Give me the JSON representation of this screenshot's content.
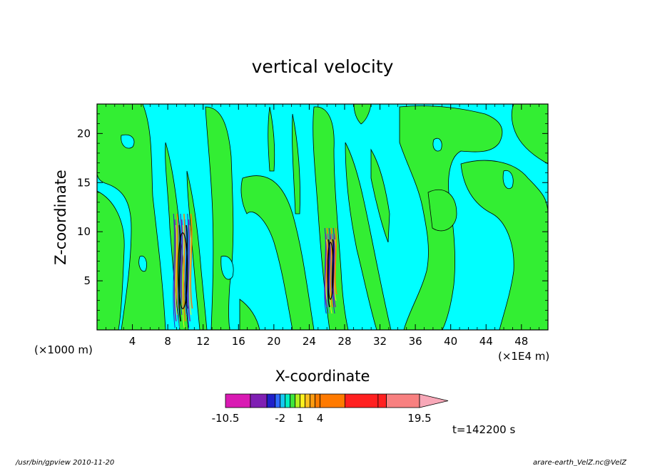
{
  "chart_data": {
    "type": "contour",
    "title": "vertical velocity",
    "xlabel": "X-coordinate",
    "ylabel": "Z-coordinate",
    "x_units_left": "(×1000 m)",
    "x_units_right": "(×1E4 m)",
    "xlim": [
      0,
      51
    ],
    "ylim": [
      0,
      23
    ],
    "x_ticks": [
      "4",
      "8",
      "12",
      "16",
      "20",
      "24",
      "28",
      "32",
      "36",
      "40",
      "44",
      "48"
    ],
    "x_tick_values": [
      4,
      8,
      12,
      16,
      20,
      24,
      28,
      32,
      36,
      40,
      44,
      48
    ],
    "y_ticks": [
      "5",
      "10",
      "15",
      "20"
    ],
    "y_tick_values": [
      5,
      10,
      15,
      20
    ],
    "colorbar": {
      "labels": [
        "-10.5",
        "-2",
        "1",
        "4",
        "19.5"
      ],
      "label_values": [
        -10.5,
        -2,
        1,
        4,
        19.5
      ],
      "levels": [
        -10.5,
        -7.5,
        -5,
        -3,
        -2,
        -1,
        0,
        0.5,
        1,
        1.5,
        2,
        3,
        4,
        8,
        12,
        16,
        19.5
      ],
      "colors": [
        "#d91ab3",
        "#7f1fb3",
        "#1f1fc8",
        "#2f6bff",
        "#16c8f0",
        "#00f0c0",
        "#3ce63c",
        "#b4f01e",
        "#fff01e",
        "#ffbf1e",
        "#ff9a10",
        "#ff7a00",
        "#ff7a00",
        "#ff2020",
        "#ff2020",
        "#f88080"
      ],
      "extend_color": "#f8a8b8"
    },
    "background_color": "#00ffff",
    "positive_color": "#33ee33",
    "time_label": "t=142200 s",
    "updraft_columns_x": [
      9.7,
      26.4
    ]
  },
  "footer": {
    "left": "/usr/bin/gpview   2010-11-20",
    "right": "arare-earth_VelZ.nc@VelZ"
  }
}
